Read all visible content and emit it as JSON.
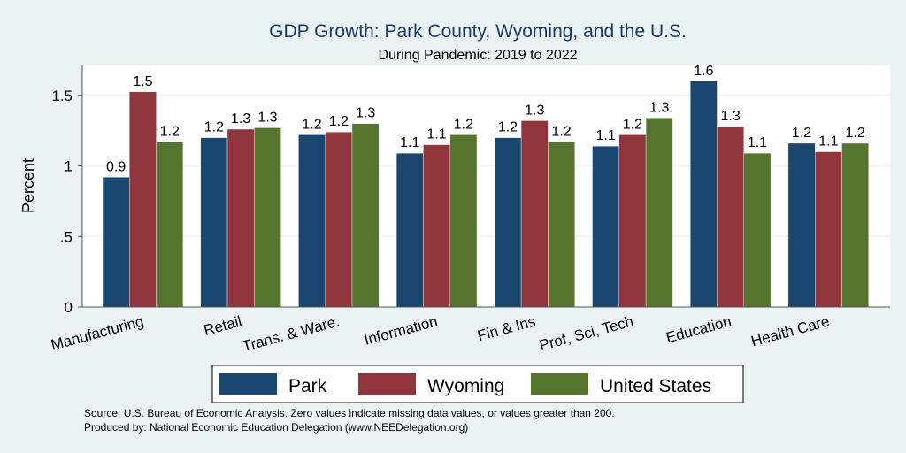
{
  "chart_data": {
    "type": "bar",
    "title": "GDP Growth: Park County, Wyoming, and the U.S.",
    "subtitle": "During Pandemic: 2019 to 2022",
    "xlabel": "",
    "ylabel": "Percent",
    "ylim": [
      0,
      1.71
    ],
    "yticks": [
      0,
      0.5,
      1,
      1.5
    ],
    "ytick_labels": [
      "0",
      ".5",
      "1",
      "1.5"
    ],
    "grid": true,
    "legend_position": "bottom",
    "categories": [
      "Manufacturing",
      "Retail",
      "Trans. & Ware.",
      "Information",
      "Fin & Ins",
      "Prof, Sci, Tech",
      "Education",
      "Health Care"
    ],
    "series": [
      {
        "name": "Park",
        "color": "#1a476f",
        "values": [
          0.92,
          1.2,
          1.22,
          1.09,
          1.2,
          1.14,
          1.6,
          1.16
        ],
        "labels": [
          "0.9",
          "1.2",
          "1.2",
          "1.1",
          "1.2",
          "1.1",
          "1.6",
          "1.2"
        ]
      },
      {
        "name": "Wyoming",
        "color": "#90353b",
        "values": [
          1.525,
          1.26,
          1.24,
          1.15,
          1.32,
          1.22,
          1.28,
          1.1
        ],
        "labels": [
          "1.5",
          "1.3",
          "1.2",
          "1.1",
          "1.3",
          "1.2",
          "1.3",
          "1.1"
        ]
      },
      {
        "name": "United States",
        "color": "#55752f",
        "values": [
          1.17,
          1.27,
          1.3,
          1.22,
          1.17,
          1.34,
          1.09,
          1.16
        ],
        "labels": [
          "1.2",
          "1.3",
          "1.3",
          "1.2",
          "1.2",
          "1.3",
          "1.1",
          "1.2"
        ]
      }
    ],
    "notes": [
      "Source: U.S. Bureau of Economic Analysis. Zero values indicate missing data values, or values greater than 200.",
      "Produced by: National Economic Education Delegation (www.NEEDelegation.org)"
    ]
  }
}
